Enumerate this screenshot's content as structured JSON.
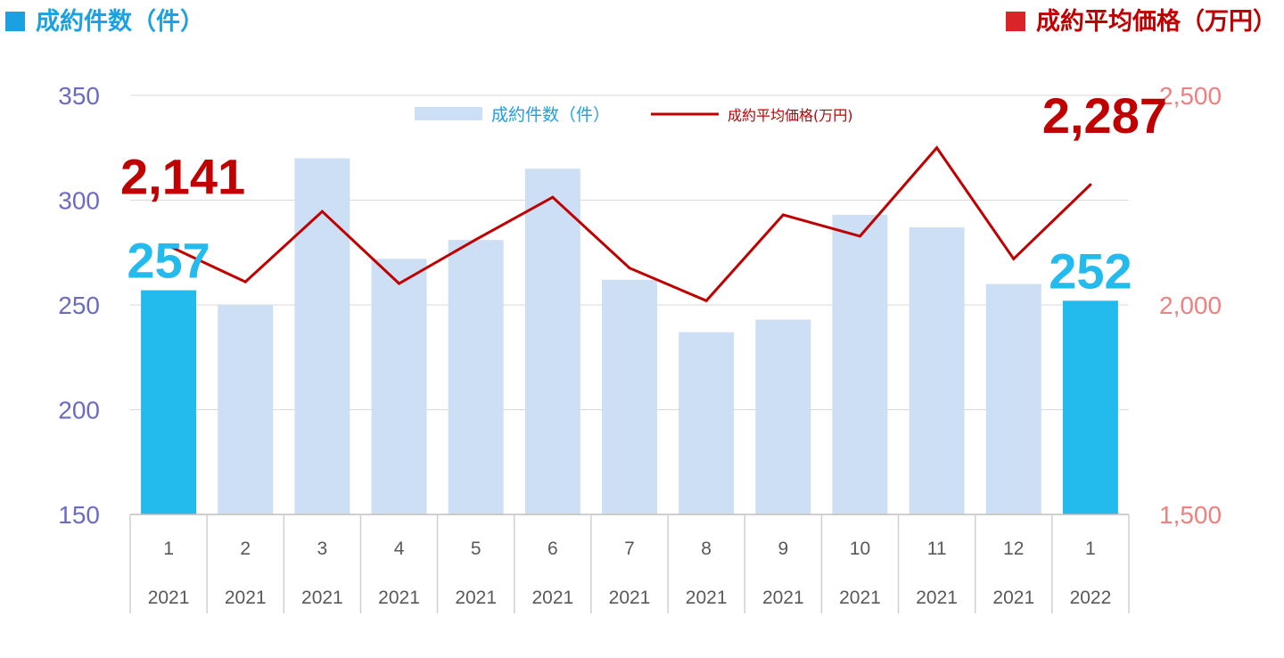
{
  "headers": {
    "left_label": "成約件数（件）",
    "right_label": "成約平均価格（万円）"
  },
  "colors": {
    "bar": "#cddff4",
    "bar_highlight": "#23bbee",
    "line": "#c00000",
    "left_axis": "#6b6bc4",
    "right_axis": "#f08080",
    "header_left": "#1ba1e2",
    "header_right": "#c00000"
  },
  "chart_data": {
    "type": "bar+line",
    "categories": [
      {
        "month": "1",
        "year": "2021"
      },
      {
        "month": "2",
        "year": "2021"
      },
      {
        "month": "3",
        "year": "2021"
      },
      {
        "month": "4",
        "year": "2021"
      },
      {
        "month": "5",
        "year": "2021"
      },
      {
        "month": "6",
        "year": "2021"
      },
      {
        "month": "7",
        "year": "2021"
      },
      {
        "month": "8",
        "year": "2021"
      },
      {
        "month": "9",
        "year": "2021"
      },
      {
        "month": "10",
        "year": "2021"
      },
      {
        "month": "11",
        "year": "2021"
      },
      {
        "month": "12",
        "year": "2021"
      },
      {
        "month": "1",
        "year": "2022"
      }
    ],
    "series": [
      {
        "name": "成約件数（件）",
        "type": "bar",
        "axis": "left",
        "values": [
          257,
          250,
          320,
          272,
          281,
          315,
          262,
          237,
          243,
          293,
          287,
          260,
          252
        ],
        "highlight_indices": [
          0,
          12
        ]
      },
      {
        "name": "成約平均価格(万円)",
        "type": "line",
        "axis": "right",
        "values": [
          2141,
          2055,
          2223,
          2051,
          2156,
          2257,
          2088,
          2010,
          2215,
          2164,
          2375,
          2110,
          2287
        ]
      }
    ],
    "y_left": {
      "min": 150,
      "max": 350,
      "ticks": [
        "150",
        "200",
        "250",
        "300",
        "350"
      ]
    },
    "y_right": {
      "min": 1500,
      "max": 2500,
      "ticks": [
        "1,500",
        "2,000",
        "2,500"
      ]
    },
    "annotations": [
      {
        "series": "bar",
        "index": 0,
        "text": "257"
      },
      {
        "series": "bar",
        "index": 12,
        "text": "252"
      },
      {
        "series": "line",
        "index": 0,
        "text": "2,141"
      },
      {
        "series": "line",
        "index": 12,
        "text": "2,287"
      }
    ],
    "grid": true,
    "legend_position": "top-center"
  }
}
